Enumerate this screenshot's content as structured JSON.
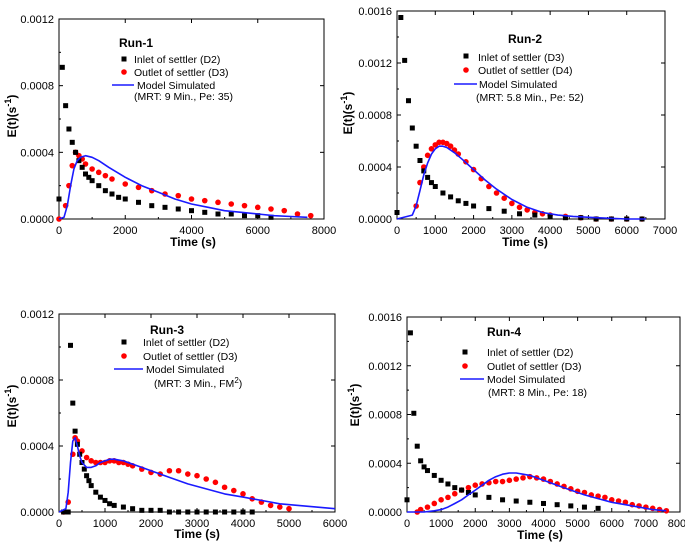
{
  "figure": {
    "colors": {
      "inlet": "#000000",
      "outlet": "#ff0000",
      "model": "#1a1aff",
      "axis": "#000000"
    }
  },
  "chart_data": [
    {
      "type": "scatter",
      "title": "Run-1",
      "xlabel": "Time (s)",
      "ylabel": "E(t)(s",
      "ylabel_sup": "-1",
      "ylabel_end": ")",
      "xlim": [
        0,
        8000
      ],
      "ylim": [
        0,
        0.0012
      ],
      "xticks": [
        0,
        2000,
        4000,
        6000,
        8000
      ],
      "yticks": [
        0.0,
        0.0004,
        0.0008,
        0.0012
      ],
      "ytick_labels": [
        "0.0000",
        "0.0004",
        "0.0008",
        "0.0012"
      ],
      "legend": {
        "inlet": "Inlet of settler (D2)",
        "outlet": "Outlet of settler (D3)",
        "model": "Model Simulated",
        "model_note": "(MRT: 9 Min., Pe: 35)",
        "model_note_sup": "",
        "model_note_end": ""
      },
      "series": [
        {
          "name": "Inlet of settler (D2)",
          "kind": "square",
          "x": [
            0,
            100,
            200,
            300,
            400,
            500,
            600,
            700,
            800,
            900,
            1000,
            1200,
            1400,
            1600,
            1800,
            2000,
            2400,
            2800,
            3200,
            3600,
            4000,
            4400,
            4800,
            5200,
            5600,
            6000,
            6400
          ],
          "y": [
            0.00012,
            0.00091,
            0.00068,
            0.00054,
            0.00046,
            0.0004,
            0.00035,
            0.00031,
            0.00027,
            0.00025,
            0.00023,
            0.0002,
            0.00017,
            0.00015,
            0.00013,
            0.00012,
            0.0001,
            8e-05,
            7e-05,
            6e-05,
            5e-05,
            4e-05,
            3e-05,
            3e-05,
            2e-05,
            2e-05,
            1e-05
          ]
        },
        {
          "name": "Outlet of settler (D3)",
          "kind": "circle",
          "x": [
            0,
            200,
            300,
            400,
            500,
            600,
            700,
            800,
            1000,
            1200,
            1400,
            1600,
            2000,
            2400,
            2800,
            3200,
            3600,
            4000,
            4400,
            4800,
            5200,
            5600,
            6000,
            6400,
            6800,
            7200,
            7600
          ],
          "y": [
            0.0,
            8e-05,
            0.0002,
            0.00032,
            0.0004,
            0.00038,
            0.00036,
            0.00033,
            0.0003,
            0.00028,
            0.00026,
            0.00024,
            0.00021,
            0.00019,
            0.00017,
            0.00015,
            0.00014,
            0.00012,
            0.00011,
            0.0001,
            9e-05,
            8e-05,
            7e-05,
            6e-05,
            5e-05,
            3e-05,
            2e-05
          ]
        },
        {
          "name": "Model Simulated",
          "kind": "line",
          "x": [
            0,
            150,
            250,
            350,
            450,
            550,
            650,
            800,
            1000,
            1200,
            1500,
            2000,
            2500,
            3000,
            3500,
            4000,
            4500,
            5000,
            5500,
            6000,
            6500,
            7000,
            7500
          ],
          "y": [
            0.0,
            1e-05,
            8e-05,
            0.0002,
            0.0003,
            0.00035,
            0.00037,
            0.00038,
            0.00037,
            0.00035,
            0.00031,
            0.00025,
            0.0002,
            0.00016,
            0.00012,
            9e-05,
            7e-05,
            5e-05,
            4e-05,
            3e-05,
            2e-05,
            1.5e-05,
            1e-05
          ]
        }
      ]
    },
    {
      "type": "scatter",
      "title": "Run-2",
      "xlabel": "Time (s)",
      "ylabel": "E(t)(s",
      "ylabel_sup": "-1",
      "ylabel_end": ")",
      "xlim": [
        0,
        7000
      ],
      "ylim": [
        0,
        0.0016
      ],
      "xticks": [
        0,
        1000,
        2000,
        3000,
        4000,
        5000,
        6000,
        7000
      ],
      "yticks": [
        0.0,
        0.0004,
        0.0008,
        0.0012,
        0.0016
      ],
      "ytick_labels": [
        "0.0000",
        "0.0004",
        "0.0008",
        "0.0012",
        "0.0016"
      ],
      "legend": {
        "inlet": "Inlet of settler (D3)",
        "outlet": "Outlet of settler (D4)",
        "model": "Model Simulated",
        "model_note": "(MRT: 5.8 Min., Pe: 52)",
        "model_note_sup": "",
        "model_note_end": ""
      },
      "series": [
        {
          "name": "Inlet of settler (D3)",
          "kind": "square",
          "x": [
            0,
            100,
            200,
            300,
            400,
            500,
            600,
            700,
            800,
            900,
            1000,
            1200,
            1400,
            1600,
            1800,
            2000,
            2400,
            2800,
            3200,
            3600,
            4000,
            4400,
            4800,
            5200,
            5600,
            6000,
            6400
          ],
          "y": [
            5e-05,
            0.00155,
            0.00122,
            0.00091,
            0.0007,
            0.00056,
            0.00045,
            0.00037,
            0.00032,
            0.00028,
            0.00025,
            0.0002,
            0.00017,
            0.00014,
            0.00012,
            0.0001,
            8e-05,
            6e-05,
            4e-05,
            3e-05,
            2e-05,
            1e-05,
            1e-05,
            0.0,
            0.0,
            0.0,
            0.0
          ]
        },
        {
          "name": "Outlet of settler (D4)",
          "kind": "circle",
          "x": [
            500,
            600,
            700,
            800,
            900,
            1000,
            1100,
            1200,
            1300,
            1400,
            1500,
            1600,
            1800,
            2000,
            2200,
            2400,
            2600,
            2800,
            3000,
            3200,
            3400,
            3600,
            3800,
            4000,
            4400,
            4800,
            5200,
            5600,
            6000,
            6400
          ],
          "y": [
            0.0001,
            0.00028,
            0.0004,
            0.00049,
            0.00054,
            0.00057,
            0.00059,
            0.00059,
            0.00058,
            0.00056,
            0.00053,
            0.0005,
            0.00044,
            0.00038,
            0.00031,
            0.00025,
            0.0002,
            0.00016,
            0.00012,
            9e-05,
            7e-05,
            5e-05,
            4e-05,
            3e-05,
            2e-05,
            1e-05,
            0.0,
            0.0,
            0.0,
            0.0
          ]
        },
        {
          "name": "Model Simulated",
          "kind": "line",
          "x": [
            0,
            400,
            500,
            600,
            700,
            800,
            900,
            1000,
            1100,
            1200,
            1300,
            1500,
            1700,
            2000,
            2300,
            2600,
            3000,
            3400,
            3800,
            4200,
            4600,
            5200,
            6000,
            6500
          ],
          "y": [
            0.0,
            3e-05,
            0.0001,
            0.00022,
            0.00034,
            0.00043,
            0.0005,
            0.00054,
            0.00056,
            0.00056,
            0.00055,
            0.00051,
            0.00046,
            0.00038,
            0.0003,
            0.00023,
            0.00015,
            9e-05,
            5e-05,
            3e-05,
            2e-05,
            1e-05,
            0.0,
            0.0
          ]
        }
      ]
    },
    {
      "type": "scatter",
      "title": "Run-3",
      "xlabel": "Time (s)",
      "ylabel": "E(t)(s",
      "ylabel_sup": "-1",
      "ylabel_end": ")",
      "xlim": [
        0,
        6000
      ],
      "ylim": [
        0,
        0.0012
      ],
      "xticks": [
        0,
        1000,
        2000,
        3000,
        4000,
        5000,
        6000
      ],
      "yticks": [
        0.0,
        0.0004,
        0.0008,
        0.0012
      ],
      "ytick_labels": [
        "0.0000",
        "0.0004",
        "0.0008",
        "0.0012"
      ],
      "legend": {
        "inlet": "Inlet of settler (D2)",
        "outlet": "Outlet of settler (D3)",
        "model": "Model Simulated",
        "model_note": "(MRT: 3 Min., FM",
        "model_note_sup": "2",
        "model_note_end": ")"
      },
      "series": [
        {
          "name": "Inlet of settler (D2)",
          "kind": "square",
          "x": [
            100,
            200,
            250,
            300,
            350,
            400,
            450,
            500,
            550,
            600,
            650,
            700,
            800,
            900,
            1000,
            1100,
            1200,
            1400,
            1600,
            1800,
            2000,
            2200,
            2400,
            2600,
            2800,
            3000,
            3200,
            3400,
            3600,
            3800,
            4000,
            4200
          ],
          "y": [
            0.0,
            0.0,
            0.00101,
            0.00066,
            0.00049,
            0.00041,
            0.00035,
            0.0003,
            0.00026,
            0.00022,
            0.00019,
            0.00016,
            0.00012,
            9e-05,
            7e-05,
            5e-05,
            4e-05,
            3e-05,
            2e-05,
            1e-05,
            1e-05,
            1e-05,
            0.0,
            0.0,
            0.0,
            0.0,
            0.0,
            0.0,
            0.0,
            0.0,
            0.0,
            0.0
          ]
        },
        {
          "name": "Outlet of settler (D3)",
          "kind": "circle",
          "x": [
            100,
            200,
            300,
            350,
            400,
            500,
            600,
            700,
            800,
            900,
            1000,
            1100,
            1200,
            1300,
            1400,
            1500,
            1600,
            1800,
            2000,
            2200,
            2400,
            2600,
            2800,
            3000,
            3200,
            3400,
            3600,
            3800,
            4000,
            4200,
            4400,
            4600,
            4800,
            5000
          ],
          "y": [
            0.0,
            6e-05,
            0.00035,
            0.00045,
            0.00043,
            0.00037,
            0.00033,
            0.00031,
            0.0003,
            0.0003,
            0.0003,
            0.00031,
            0.00031,
            0.0003,
            0.0003,
            0.00029,
            0.00028,
            0.00026,
            0.00024,
            0.00023,
            0.00025,
            0.00025,
            0.00023,
            0.00022,
            0.0002,
            0.00018,
            0.00015,
            0.00013,
            0.00011,
            8e-05,
            6e-05,
            4e-05,
            3e-05,
            2e-05
          ]
        },
        {
          "name": "Model Simulated",
          "kind": "line",
          "x": [
            0,
            150,
            200,
            250,
            300,
            350,
            400,
            450,
            500,
            600,
            700,
            800,
            900,
            1000,
            1100,
            1200,
            1400,
            1600,
            1800,
            2000,
            2400,
            2800,
            3200,
            3600,
            4000,
            4400,
            4800,
            5200,
            5600,
            6000
          ],
          "y": [
            0.0,
            2e-05,
            0.00012,
            0.0003,
            0.00043,
            0.00045,
            0.0004,
            0.00034,
            0.0003,
            0.00027,
            0.00027,
            0.00028,
            0.0003,
            0.00031,
            0.00032,
            0.00032,
            0.00031,
            0.00029,
            0.00027,
            0.00025,
            0.00021,
            0.00017,
            0.00014,
            0.00011,
            9e-05,
            7e-05,
            5e-05,
            4e-05,
            3e-05,
            2e-05
          ]
        }
      ]
    },
    {
      "type": "scatter",
      "title": "Run-4",
      "xlabel": "Time (s)",
      "ylabel": "E(t)(s",
      "ylabel_sup": "-1",
      "ylabel_end": ")",
      "xlim": [
        0,
        8000
      ],
      "ylim": [
        0,
        0.0016
      ],
      "xticks": [
        0,
        1000,
        2000,
        3000,
        4000,
        5000,
        6000,
        7000,
        8000
      ],
      "yticks": [
        0.0,
        0.0004,
        0.0008,
        0.0012,
        0.0016
      ],
      "ytick_labels": [
        "0.0000",
        "0.0004",
        "0.0008",
        "0.0012",
        "0.0016"
      ],
      "legend": {
        "inlet": "Inlet of settler (D2)",
        "outlet": "Outlet of settler (D3)",
        "model": "Model Simulated",
        "model_note": "(MRT: 8 Min., Pe: 18)",
        "model_note_sup": "",
        "model_note_end": ""
      },
      "series": [
        {
          "name": "Inlet of settler (D2)",
          "kind": "square",
          "x": [
            0,
            100,
            200,
            300,
            400,
            500,
            600,
            800,
            1000,
            1200,
            1400,
            1600,
            1800,
            2000,
            2400,
            2800,
            3200,
            3600,
            4000,
            4400,
            4800,
            5200,
            5600
          ],
          "y": [
            0.0001,
            0.00147,
            0.00081,
            0.00054,
            0.00042,
            0.00037,
            0.00034,
            0.0003,
            0.00026,
            0.00023,
            0.0002,
            0.00018,
            0.00016,
            0.00014,
            0.00012,
            0.0001,
            9e-05,
            8e-05,
            7e-05,
            6e-05,
            5e-05,
            4e-05,
            3e-05
          ]
        },
        {
          "name": "Outlet of settler (D3)",
          "kind": "circle",
          "x": [
            300,
            400,
            600,
            800,
            1000,
            1200,
            1400,
            1600,
            1800,
            2000,
            2200,
            2400,
            2600,
            2800,
            3000,
            3200,
            3400,
            3600,
            3800,
            4000,
            4200,
            4400,
            4600,
            4800,
            5000,
            5200,
            5400,
            5600,
            5800,
            6000,
            6200,
            6400,
            6600,
            6800,
            7000,
            7200,
            7400,
            7600
          ],
          "y": [
            0.0,
            2e-05,
            4e-05,
            7e-05,
            0.0001,
            0.00012,
            0.00015,
            0.00018,
            0.0002,
            0.00022,
            0.00023,
            0.00024,
            0.00025,
            0.00025,
            0.00026,
            0.00027,
            0.00028,
            0.00029,
            0.00028,
            0.00027,
            0.00025,
            0.00023,
            0.00021,
            0.00019,
            0.00017,
            0.00016,
            0.00014,
            0.00013,
            0.00012,
            0.0001,
            9e-05,
            8e-05,
            6e-05,
            5e-05,
            4e-05,
            3e-05,
            2e-05,
            1e-05
          ]
        },
        {
          "name": "Model Simulated",
          "kind": "line",
          "x": [
            0,
            500,
            800,
            1000,
            1200,
            1400,
            1600,
            1800,
            2000,
            2200,
            2400,
            2600,
            2800,
            3000,
            3200,
            3400,
            3600,
            3800,
            4000,
            4400,
            4800,
            5200,
            5600,
            6000,
            6400,
            6800,
            7200,
            7600
          ],
          "y": [
            0.0,
            0.0,
            1e-05,
            2e-05,
            4e-05,
            7e-05,
            0.0001,
            0.00014,
            0.00018,
            0.00022,
            0.00026,
            0.00029,
            0.00031,
            0.00032,
            0.00032,
            0.00031,
            0.0003,
            0.00028,
            0.00026,
            0.00022,
            0.00018,
            0.00014,
            0.00011,
            8e-05,
            6e-05,
            4e-05,
            2e-05,
            1e-05
          ]
        }
      ]
    }
  ]
}
